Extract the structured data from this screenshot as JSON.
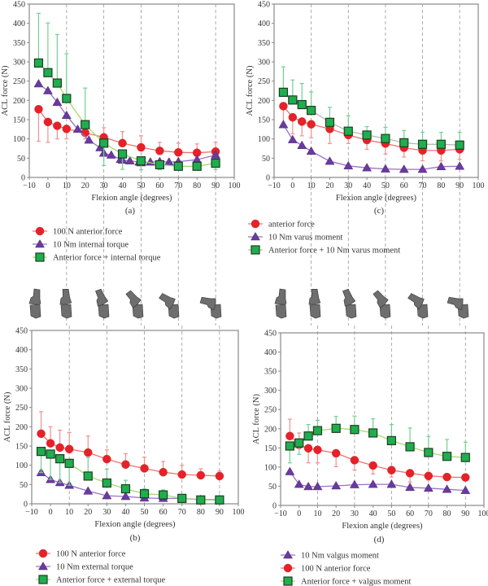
{
  "colors": {
    "red": "#e8202a",
    "red_line": "#f07070",
    "red_err": "#f09090",
    "purple": "#6a3a9e",
    "purple_line": "#9a70c8",
    "green": "#1fae4e",
    "green_line_a": "#a8d870",
    "green_line_c": "#b8b8b8",
    "green_err": "#70d090",
    "axis": "#888888",
    "dash": "#999999",
    "knee": "#6e6e6e"
  },
  "guide_lines_deg": [
    10,
    30,
    50,
    70,
    90
  ],
  "knee_angles_deg": [
    -5,
    10,
    30,
    50,
    70,
    90
  ],
  "chart_data": [
    {
      "id": "a",
      "type": "line",
      "panel_label": "(a)",
      "xlabel": "Flexion angle (degrees)",
      "ylabel": "ACL force (N)",
      "xlim": [
        -10,
        100
      ],
      "ylim": [
        0,
        450
      ],
      "xticks": [
        "−10",
        "0",
        "10",
        "20",
        "30",
        "40",
        "50",
        "60",
        "70",
        "80",
        "90",
        "100"
      ],
      "yticks": [
        "0",
        "50",
        "100",
        "150",
        "200",
        "250",
        "300",
        "350",
        "400",
        "450"
      ],
      "legend": [
        "100 N anterior force",
        "10 Nm internal torque",
        "Anterior force + internal torque"
      ],
      "series": [
        {
          "name": "100 N anterior force",
          "marker": "circle",
          "color": "red",
          "x": [
            -5,
            0,
            5,
            10,
            20,
            30,
            40,
            50,
            60,
            70,
            80,
            90
          ],
          "y": [
            177,
            144,
            134,
            126,
            116,
            104,
            89,
            78,
            69,
            65,
            64,
            67
          ],
          "err_low": [
            94,
            91,
            100,
            100,
            100,
            null,
            null,
            null,
            null,
            null,
            null,
            null
          ],
          "err_high": [
            null,
            null,
            null,
            null,
            null,
            129,
            119,
            108,
            91,
            89,
            87,
            91
          ]
        },
        {
          "name": "10 Nm internal torque",
          "marker": "triangle",
          "color": "purple",
          "x": [
            -5,
            0,
            5,
            10,
            16,
            22,
            28,
            30,
            34,
            39,
            40,
            44,
            49,
            50,
            55,
            60,
            65,
            70,
            80,
            90
          ],
          "y": [
            243,
            225,
            195,
            161,
            125,
            97,
            77,
            63,
            58,
            47,
            45,
            43,
            40,
            38,
            40,
            41,
            40,
            41,
            46,
            58
          ],
          "err_low": [],
          "err_high": []
        },
        {
          "name": "Anterior force + internal torque",
          "marker": "square",
          "color": "green",
          "line": "green_line_a",
          "x": [
            -5,
            0,
            5,
            10,
            20,
            30,
            40,
            50,
            60,
            70,
            80,
            90
          ],
          "y": [
            297,
            272,
            245,
            205,
            137,
            89,
            61,
            43,
            33,
            29,
            29,
            37
          ],
          "err_low": [
            null,
            null,
            null,
            null,
            null,
            31,
            21,
            20,
            20,
            20,
            21,
            21
          ],
          "err_high": [
            426,
            401,
            371,
            321,
            232,
            null,
            null,
            null,
            null,
            null,
            null,
            null
          ]
        }
      ]
    },
    {
      "id": "c",
      "type": "line",
      "panel_label": "(c)",
      "xlabel": "Flexion angle (degrees)",
      "ylabel": "ACL force (N)",
      "xlim": [
        -10,
        100
      ],
      "ylim": [
        0,
        450
      ],
      "xticks": [
        "−10",
        "0",
        "10",
        "20",
        "30",
        "40",
        "50",
        "60",
        "70",
        "80",
        "90",
        "100"
      ],
      "yticks": [
        "0",
        "50",
        "100",
        "150",
        "200",
        "250",
        "300",
        "350",
        "400",
        "450"
      ],
      "legend": [
        "anterior force",
        "10 Nm varus moment",
        "Anterior force + 10 Nm varus moment"
      ],
      "series": [
        {
          "name": "anterior force",
          "marker": "circle",
          "color": "red",
          "x": [
            -5,
            0,
            5,
            10,
            20,
            30,
            40,
            50,
            60,
            70,
            80,
            90
          ],
          "y": [
            185,
            156,
            145,
            138,
            126,
            110,
            97,
            88,
            77,
            70,
            70,
            73
          ],
          "err_low": [
            130,
            113,
            108,
            103,
            88,
            88,
            73,
            61,
            53,
            43,
            43,
            47
          ],
          "err_high": []
        },
        {
          "name": "10 Nm varus moment",
          "marker": "triangle",
          "color": "purple",
          "x": [
            -5,
            0,
            5,
            10,
            20,
            30,
            40,
            50,
            60,
            70,
            80,
            90
          ],
          "y": [
            137,
            98,
            83,
            68,
            42,
            30,
            25,
            22,
            21,
            21,
            28,
            29
          ],
          "err_low": [],
          "err_high": []
        },
        {
          "name": "Anterior force + 10 Nm varus moment",
          "marker": "square",
          "color": "green",
          "line": "green_line_c",
          "x": [
            -5,
            0,
            5,
            10,
            20,
            30,
            40,
            50,
            60,
            70,
            80,
            90
          ],
          "y": [
            221,
            201,
            189,
            174,
            143,
            120,
            110,
            101,
            90,
            86,
            86,
            84
          ],
          "err_low": [],
          "err_high": [
            287,
            253,
            244,
            222,
            182,
            160,
            132,
            130,
            122,
            117,
            117,
            117
          ]
        }
      ]
    },
    {
      "id": "b",
      "type": "line",
      "panel_label": "(b)",
      "xlabel": "Flexion angle (degrees)",
      "ylabel": "ACL force (N)",
      "xlim": [
        -10,
        100
      ],
      "ylim": [
        0,
        450
      ],
      "xticks": [
        "−10",
        "0",
        "10",
        "20",
        "30",
        "40",
        "50",
        "60",
        "70",
        "80",
        "90",
        "100"
      ],
      "yticks": [
        "0",
        "50",
        "100",
        "150",
        "200",
        "250",
        "300",
        "350",
        "400",
        "450"
      ],
      "legend": [
        "100 N anterior force",
        "10 Nm external torque",
        "Anterior force + external torque"
      ],
      "series": [
        {
          "name": "100 N anterior force",
          "marker": "circle",
          "color": "red",
          "x": [
            -5,
            0,
            5,
            10,
            20,
            30,
            40,
            50,
            60,
            70,
            80,
            90
          ],
          "y": [
            182,
            157,
            146,
            142,
            133,
            116,
            102,
            92,
            82,
            76,
            74,
            72
          ],
          "err_low": [],
          "err_high": [
            239,
            200,
            191,
            185,
            176,
            140,
            130,
            121,
            110,
            100,
            91,
            85
          ]
        },
        {
          "name": "10 Nm external torque",
          "marker": "triangle",
          "color": "purple",
          "x": [
            -5,
            0,
            5,
            10,
            20,
            30,
            40,
            50,
            60,
            70,
            80,
            90
          ],
          "y": [
            81,
            63,
            55,
            48,
            33,
            21,
            19,
            15,
            14,
            14,
            11,
            11
          ],
          "err_low": [],
          "err_high": []
        },
        {
          "name": "Anterior force + external torque",
          "marker": "square",
          "color": "green",
          "line": "green_line_a",
          "x": [
            -5,
            0,
            5,
            10,
            20,
            30,
            40,
            50,
            60,
            70,
            80,
            90
          ],
          "y": [
            136,
            129,
            117,
            105,
            72,
            54,
            39,
            26,
            23,
            14,
            10,
            10
          ],
          "err_low": [
            81,
            63,
            55,
            48,
            null,
            null,
            null,
            null,
            null,
            null,
            null,
            null
          ],
          "err_high": [
            null,
            null,
            null,
            null,
            120,
            90,
            61,
            39,
            36,
            null,
            null,
            null
          ]
        }
      ]
    },
    {
      "id": "d",
      "type": "line",
      "panel_label": "(d)",
      "xlabel": "Flexion angle (degrees)",
      "ylabel": "ACL force (N)",
      "xlim": [
        -10,
        100
      ],
      "ylim": [
        0,
        450
      ],
      "xticks": [
        "−10",
        "0",
        "10",
        "20",
        "30",
        "40",
        "50",
        "60",
        "70",
        "80",
        "90",
        "100"
      ],
      "yticks": [
        "0",
        "50",
        "100",
        "150",
        "200",
        "250",
        "300",
        "350",
        "400",
        "450"
      ],
      "legend": [
        "10 Nm valgus moment",
        "100 N anterior force",
        "Anterior force + valgus moment"
      ],
      "series": [
        {
          "name": "10 Nm valgus moment",
          "marker": "triangle",
          "color": "purple",
          "x": [
            -5,
            0,
            5,
            10,
            20,
            30,
            40,
            50,
            60,
            70,
            80,
            90
          ],
          "y": [
            88,
            55,
            49,
            49,
            51,
            54,
            55,
            55,
            47,
            45,
            42,
            39
          ],
          "err_low": [],
          "err_high": []
        },
        {
          "name": "100 N anterior force",
          "marker": "circle",
          "color": "red",
          "x": [
            -5,
            0,
            5,
            10,
            20,
            30,
            40,
            50,
            60,
            70,
            80,
            90
          ],
          "y": [
            181,
            158,
            149,
            145,
            136,
            118,
            104,
            92,
            84,
            77,
            74,
            73
          ],
          "err_low": [
            null,
            null,
            111,
            111,
            101,
            92,
            82,
            74,
            61,
            66,
            null,
            null
          ],
          "err_high": [
            225,
            189,
            null,
            null,
            null,
            null,
            null,
            null,
            null,
            null,
            null,
            null
          ]
        },
        {
          "name": "Anterior force + valgus moment",
          "marker": "square",
          "color": "green",
          "line": "green_line_a",
          "x": [
            -5,
            0,
            5,
            10,
            20,
            30,
            40,
            50,
            60,
            70,
            80,
            90
          ],
          "y": [
            155,
            163,
            181,
            195,
            201,
            198,
            189,
            169,
            153,
            138,
            128,
            125
          ],
          "err_low": [
            111,
            133,
            null,
            null,
            null,
            null,
            null,
            null,
            null,
            null,
            null,
            null
          ],
          "err_high": [
            null,
            null,
            211,
            222,
            232,
            233,
            226,
            211,
            202,
            180,
            172,
            165
          ]
        }
      ]
    }
  ]
}
